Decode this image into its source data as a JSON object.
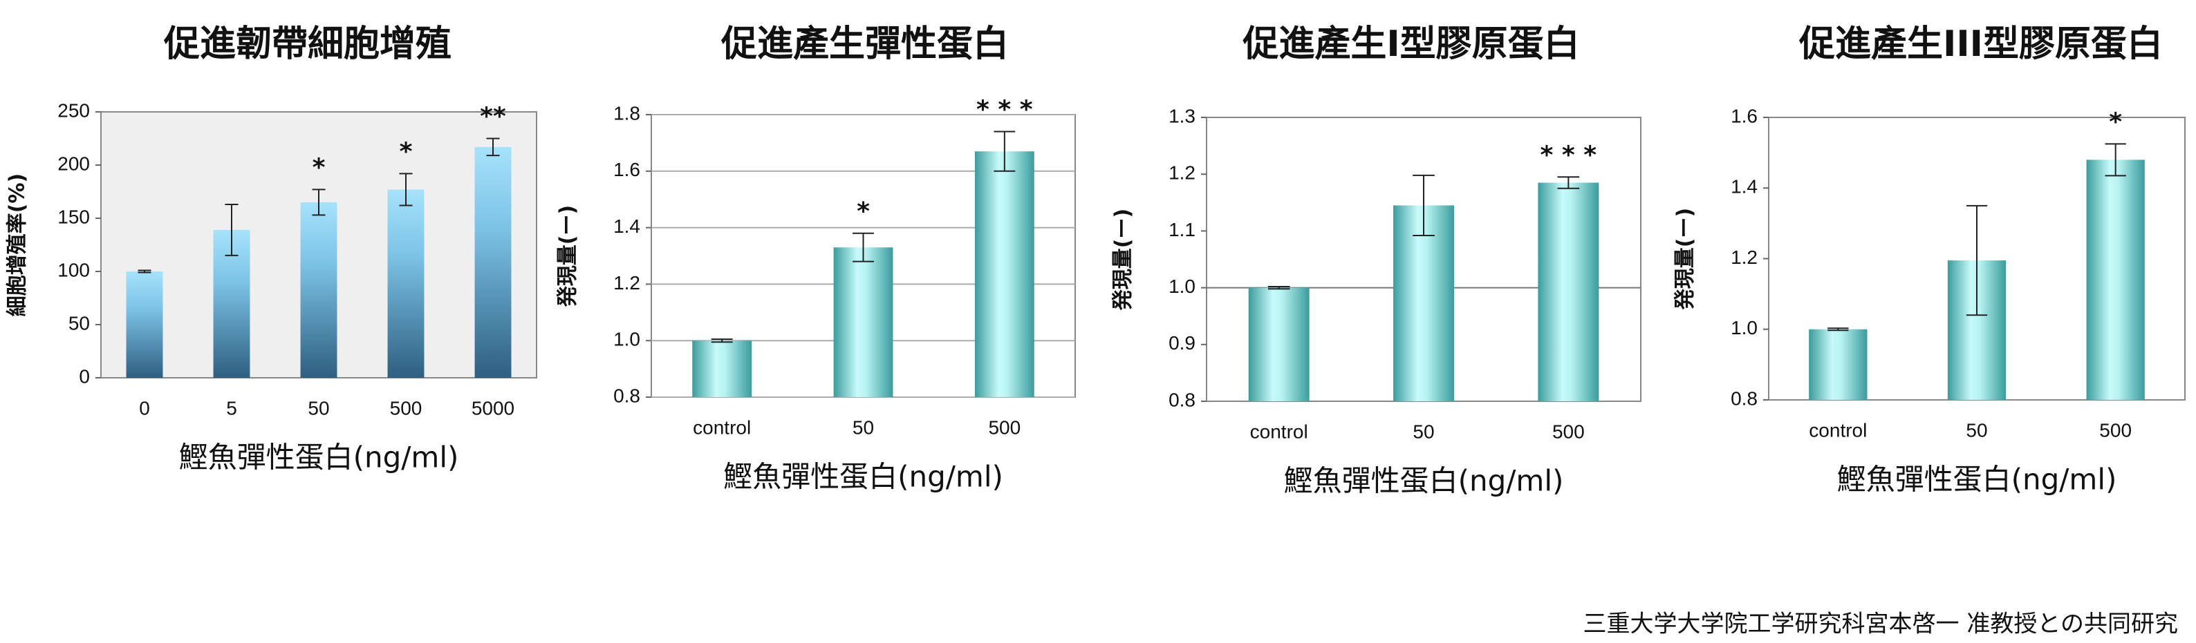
{
  "charts_title_note": null,
  "chart_data": [
    {
      "type": "bar",
      "title": "促進韌帶細胞增殖",
      "y_label": "細胞增殖率(%)",
      "x_label": "鰹魚彈性蛋白(ng/ml)",
      "categories": [
        "0",
        "5",
        "50",
        "500",
        "5000"
      ],
      "values": [
        100,
        139,
        165,
        177,
        217
      ],
      "errors": [
        1,
        24,
        12,
        15,
        8
      ],
      "annotations": [
        null,
        null,
        "*",
        "*",
        "**"
      ],
      "ylim": [
        0,
        250
      ],
      "yticks": [
        0,
        50,
        100,
        150,
        200,
        250
      ],
      "grid": false,
      "color": "#2e5f80",
      "gradient": "vertical",
      "plot_background": "#efefef"
    },
    {
      "type": "bar",
      "title": "促進產生彈性蛋白",
      "y_label": "発現量(ー)",
      "x_label": "鰹魚彈性蛋白(ng/ml)",
      "categories": [
        "control",
        "50",
        "500"
      ],
      "values": [
        1,
        1.33,
        1.67
      ],
      "errors": [
        0.005,
        0.05,
        0.07
      ],
      "annotations": [
        null,
        "*",
        "* * *"
      ],
      "ylim": [
        0.8,
        1.8
      ],
      "yticks": [
        0.8,
        {
          "value": 1,
          "label": "1.0"
        },
        1.2,
        1.4,
        1.6,
        1.8
      ],
      "grid": true,
      "color": "#3a9c9c",
      "gradient": "cylinder",
      "plot_background": "#ffffff"
    },
    {
      "type": "bar",
      "title": "促進產生I型膠原蛋白",
      "y_label": "発現量(ー)",
      "x_label": "鰹魚彈性蛋白(ng/ml)",
      "categories": [
        "control",
        "50",
        "500"
      ],
      "values": [
        1,
        1.145,
        1.185
      ],
      "errors": [
        0.002,
        0.053,
        0.01
      ],
      "annotations": [
        null,
        null,
        "* * *"
      ],
      "ylim": [
        0.8,
        1.3
      ],
      "yticks": [
        0.8,
        0.9,
        {
          "value": 1,
          "label": "1.0"
        },
        1.1,
        1.2,
        1.3
      ],
      "grid": false,
      "reference_line": 1,
      "color": "#3a9c9c",
      "gradient": "cylinder",
      "plot_background": "#ffffff"
    },
    {
      "type": "bar",
      "title": "促進產生III型膠原蛋白",
      "y_label": "発現量(ー)",
      "x_label": "鰹魚彈性蛋白(ng/ml)",
      "categories": [
        "control",
        "50",
        "500"
      ],
      "values": [
        1,
        1.195,
        1.48
      ],
      "errors": [
        0.003,
        0.155,
        0.045
      ],
      "annotations": [
        null,
        null,
        "*"
      ],
      "ylim": [
        0.8,
        1.6
      ],
      "yticks": [
        0.8,
        {
          "value": 1,
          "label": "1.0"
        },
        1.2,
        1.4,
        1.6
      ],
      "grid": false,
      "color": "#3a9c9c",
      "gradient": "cylinder",
      "plot_background": "#ffffff"
    }
  ],
  "footer": "三重大学大学院工学研究科宮本啓一 准教授との共同研究"
}
